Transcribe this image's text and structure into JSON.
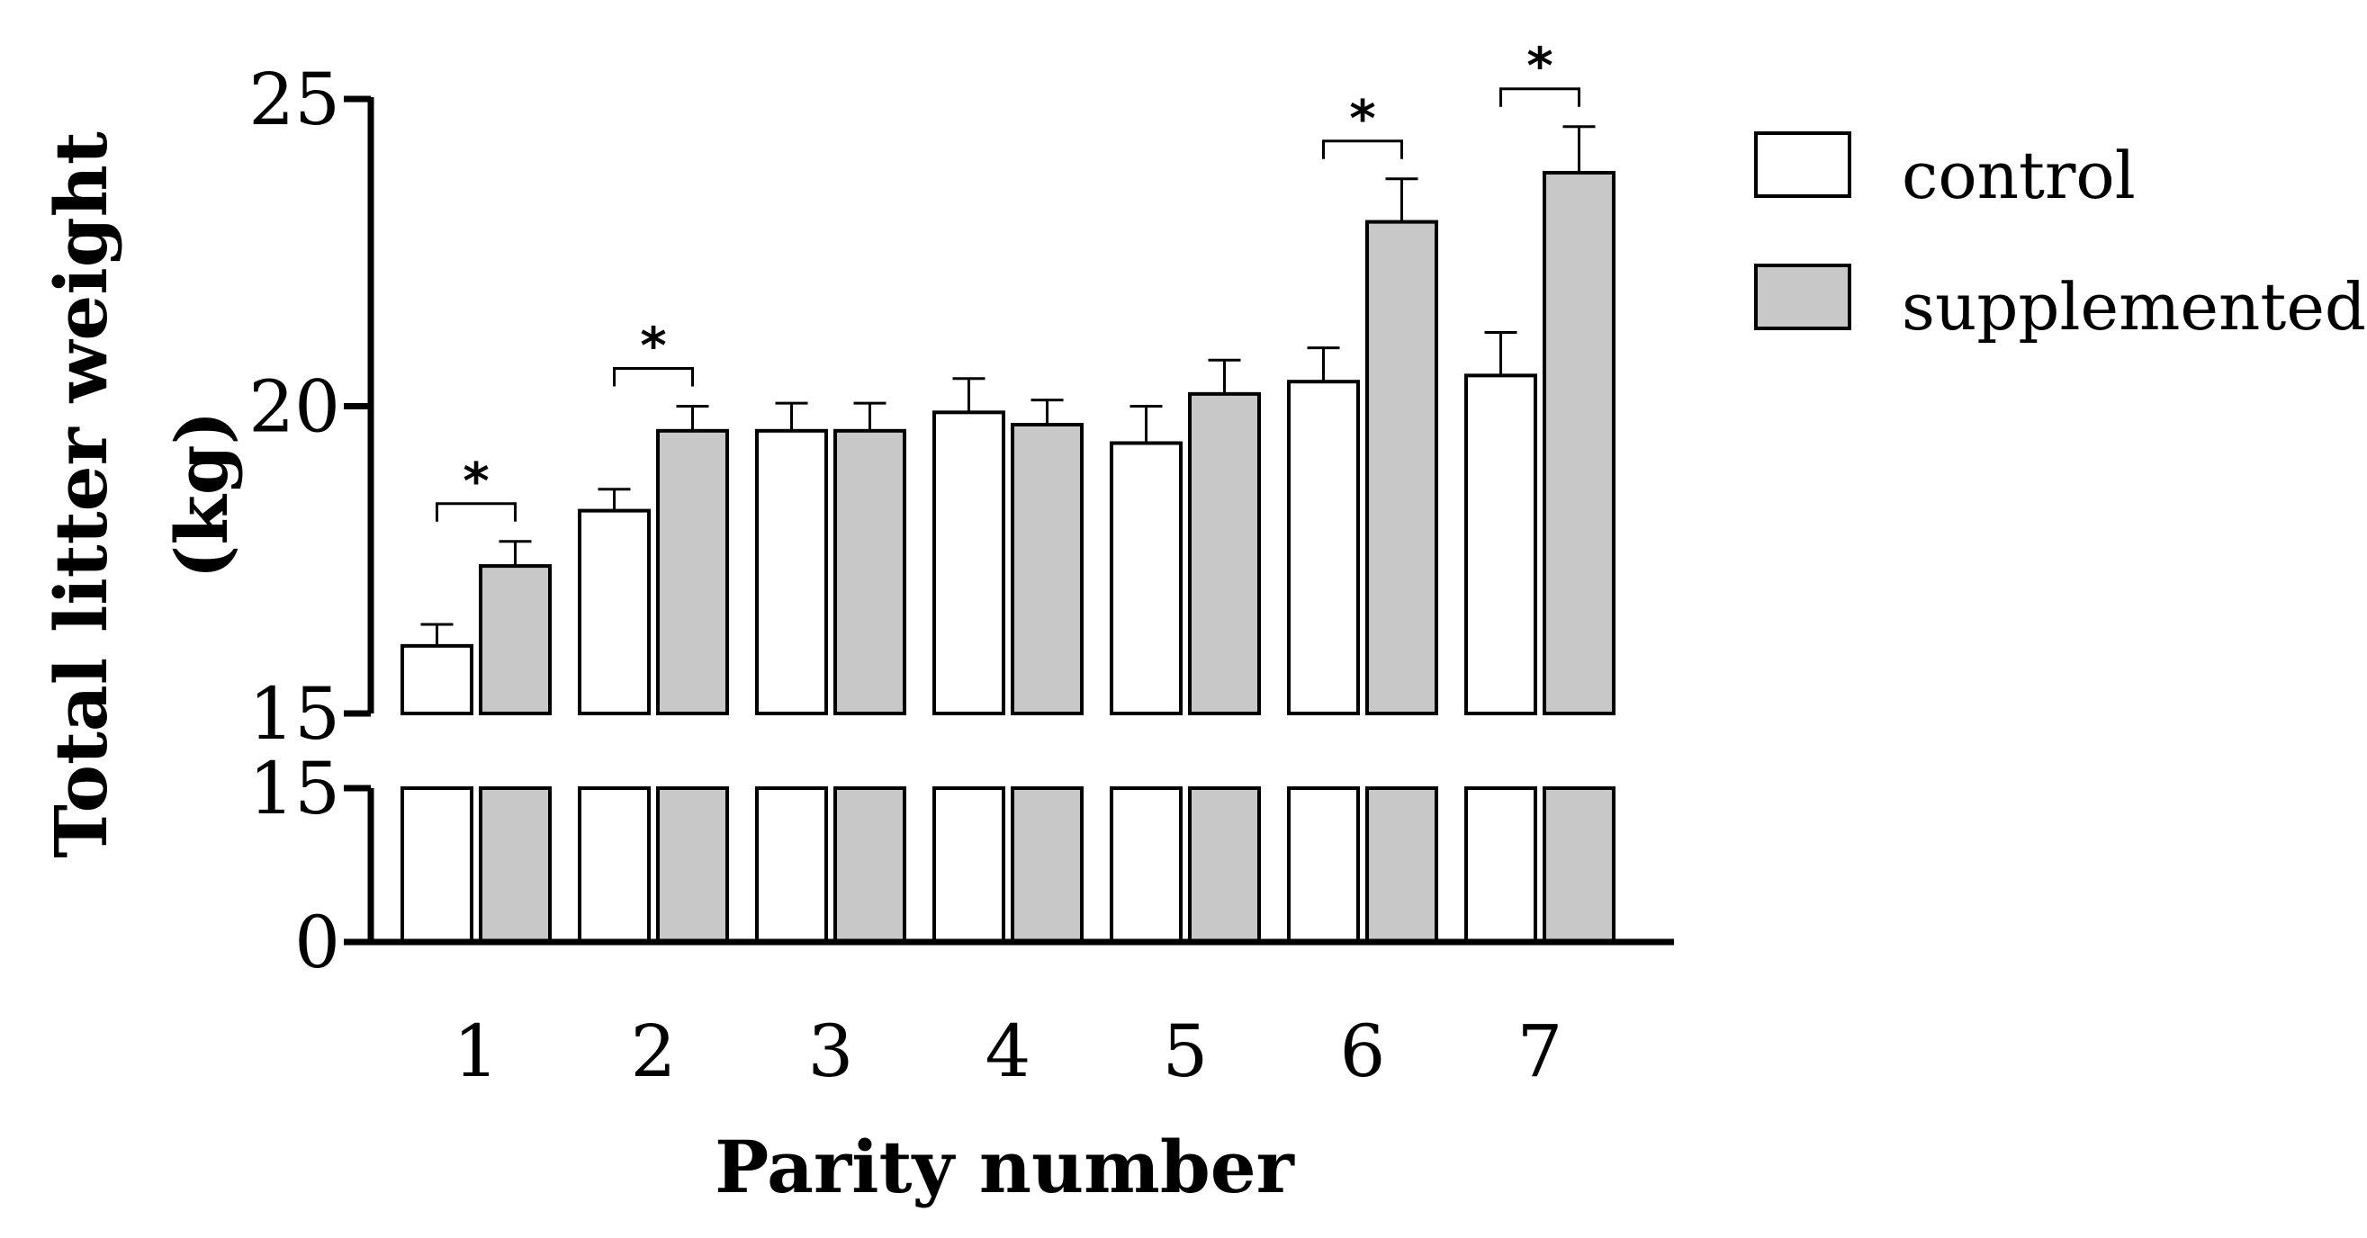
{
  "chart_data": {
    "type": "bar",
    "title": "",
    "xlabel": "Parity number",
    "ylabel": "Total litter weight (kg)",
    "ylabel_lines": [
      "Total litter weight",
      "(kg)"
    ],
    "categories": [
      "1",
      "2",
      "3",
      "4",
      "5",
      "6",
      "7"
    ],
    "series": [
      {
        "name": "control",
        "color": "#ffffff",
        "values": [
          16.1,
          18.3,
          19.6,
          19.9,
          19.4,
          20.4,
          20.5
        ],
        "error": [
          0.35,
          0.35,
          0.45,
          0.55,
          0.6,
          0.55,
          0.7
        ]
      },
      {
        "name": "supplemented",
        "color": "#c8c8c8",
        "values": [
          17.4,
          19.6,
          19.6,
          19.7,
          20.2,
          23.0,
          23.8
        ],
        "error": [
          0.4,
          0.4,
          0.45,
          0.4,
          0.55,
          0.7,
          0.75
        ]
      }
    ],
    "y_axis_break": true,
    "y_segments": [
      {
        "ylim": [
          15,
          25
        ],
        "ticks": [
          "25",
          "20",
          "15"
        ]
      },
      {
        "ylim": [
          0,
          15
        ],
        "ticks": [
          "15",
          "0"
        ]
      }
    ],
    "significance": [
      {
        "category": "1",
        "label": "*"
      },
      {
        "category": "2",
        "label": "*"
      },
      {
        "category": "6",
        "label": "*"
      },
      {
        "category": "7",
        "label": "*"
      }
    ],
    "legend_position": "top-right",
    "grid": false
  }
}
